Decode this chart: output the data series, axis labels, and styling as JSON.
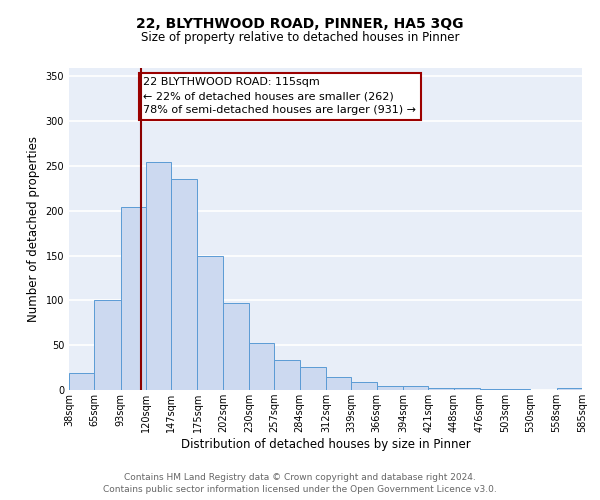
{
  "title": "22, BLYTHWOOD ROAD, PINNER, HA5 3QG",
  "subtitle": "Size of property relative to detached houses in Pinner",
  "xlabel": "Distribution of detached houses by size in Pinner",
  "ylabel": "Number of detached properties",
  "bar_edges": [
    38,
    65,
    93,
    120,
    147,
    175,
    202,
    230,
    257,
    284,
    312,
    339,
    366,
    394,
    421,
    448,
    476,
    503,
    530,
    558,
    585
  ],
  "bar_heights": [
    19,
    100,
    204,
    255,
    236,
    150,
    97,
    53,
    34,
    26,
    15,
    9,
    5,
    5,
    2,
    2,
    1,
    1,
    0,
    2
  ],
  "bar_color": "#ccd9f0",
  "bar_edge_color": "#5b9bd5",
  "vline_x": 115,
  "vline_color": "#8b0000",
  "ylim": [
    0,
    360
  ],
  "yticks": [
    0,
    50,
    100,
    150,
    200,
    250,
    300,
    350
  ],
  "tick_labels": [
    "38sqm",
    "65sqm",
    "93sqm",
    "120sqm",
    "147sqm",
    "175sqm",
    "202sqm",
    "230sqm",
    "257sqm",
    "284sqm",
    "312sqm",
    "339sqm",
    "366sqm",
    "394sqm",
    "421sqm",
    "448sqm",
    "476sqm",
    "503sqm",
    "530sqm",
    "558sqm",
    "585sqm"
  ],
  "annotation_title": "22 BLYTHWOOD ROAD: 115sqm",
  "annotation_line1": "← 22% of detached houses are smaller (262)",
  "annotation_line2": "78% of semi-detached houses are larger (931) →",
  "annotation_box_color": "#ffffff",
  "annotation_box_edge": "#9b0000",
  "footer_line1": "Contains HM Land Registry data © Crown copyright and database right 2024.",
  "footer_line2": "Contains public sector information licensed under the Open Government Licence v3.0.",
  "bg_color": "#e8eef8",
  "grid_color": "#ffffff",
  "title_fontsize": 10,
  "subtitle_fontsize": 8.5,
  "axis_label_fontsize": 8.5,
  "tick_fontsize": 7,
  "annotation_fontsize": 8,
  "footer_fontsize": 6.5
}
